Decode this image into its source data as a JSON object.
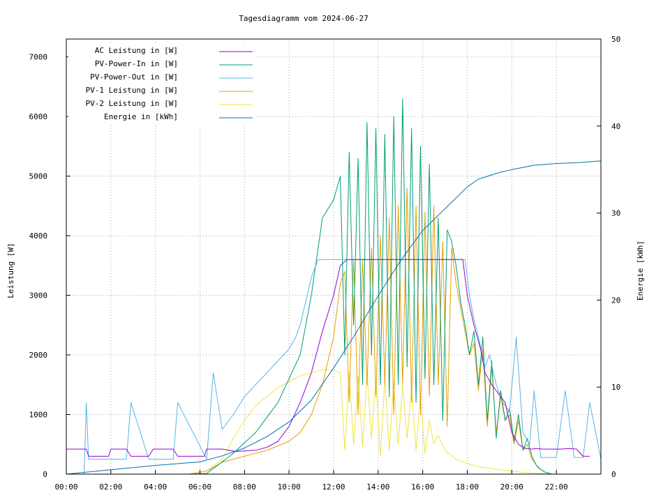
{
  "chart_data": {
    "type": "line",
    "title": "Tagesdiagramm vom 2024-06-27",
    "ylabel": "Leistung [W]",
    "y2label": "Energie [kWh]",
    "xlim": [
      0,
      24
    ],
    "ylim": [
      0,
      7300
    ],
    "y2lim": [
      0,
      50
    ],
    "x_ticks": [
      "00:00",
      "02:00",
      "04:00",
      "06:00",
      "08:00",
      "10:00",
      "12:00",
      "14:00",
      "16:00",
      "18:00",
      "20:00",
      "22:00"
    ],
    "y_ticks": [
      0,
      1000,
      2000,
      3000,
      4000,
      5000,
      6000,
      7000
    ],
    "y2_ticks": [
      0,
      10,
      20,
      30,
      40,
      50
    ],
    "grid": true,
    "legend_position": "top-left",
    "series": [
      {
        "name": "AC Leistung in [W]",
        "color": "#9400d3",
        "axis": "left",
        "x": [
          0,
          0.9,
          1.0,
          1.9,
          2.0,
          2.7,
          2.9,
          3.7,
          3.9,
          4.8,
          5.0,
          6.2,
          6.3,
          7.0,
          7.6,
          8.5,
          9.0,
          9.5,
          10.0,
          10.5,
          11.0,
          11.5,
          12.0,
          12.3,
          12.6,
          13.0,
          13.3,
          13.6,
          14.0,
          14.3,
          14.6,
          15.0,
          15.3,
          15.6,
          16.0,
          16.3,
          16.6,
          17.0,
          17.3,
          17.6,
          17.8,
          18.0,
          18.3,
          18.6,
          18.8,
          19.1,
          19.4,
          19.7,
          20.0,
          20.3,
          20.6,
          20.9,
          21.1,
          21.4,
          21.8,
          22.2,
          22.6,
          22.9,
          23.2,
          23.5
        ],
        "y": [
          420,
          420,
          300,
          300,
          420,
          420,
          300,
          300,
          420,
          420,
          300,
          300,
          420,
          420,
          380,
          400,
          450,
          550,
          800,
          1200,
          1700,
          2400,
          3000,
          3500,
          3600,
          3600,
          3600,
          3600,
          3600,
          3600,
          3600,
          3600,
          3600,
          3600,
          3600,
          3600,
          3600,
          3600,
          3600,
          3600,
          3600,
          3000,
          2500,
          2100,
          1700,
          1500,
          1350,
          1200,
          700,
          500,
          430,
          420,
          430,
          420,
          420,
          420,
          430,
          420,
          300,
          300
        ]
      },
      {
        "name": "PV-Power-In in [W]",
        "color": "#009e73",
        "axis": "left",
        "x": [
          0,
          5.5,
          6.3,
          6.8,
          7.5,
          8.5,
          9.5,
          10.5,
          11.0,
          11.5,
          12.0,
          12.3,
          12.5,
          12.7,
          12.9,
          13.1,
          13.3,
          13.5,
          13.7,
          13.9,
          14.1,
          14.3,
          14.5,
          14.7,
          14.9,
          15.1,
          15.3,
          15.5,
          15.7,
          15.9,
          16.1,
          16.3,
          16.5,
          16.7,
          16.9,
          17.1,
          17.3,
          17.5,
          17.7,
          17.9,
          18.1,
          18.3,
          18.5,
          18.7,
          18.9,
          19.1,
          19.3,
          19.5,
          19.7,
          19.9,
          20.1,
          20.3,
          20.5,
          20.7,
          20.9,
          21.1,
          21.3,
          21.5,
          21.8,
          22.2,
          24
        ],
        "y": [
          0,
          0,
          10,
          150,
          350,
          700,
          1200,
          2000,
          3000,
          4300,
          4600,
          5000,
          2000,
          5400,
          2500,
          5300,
          1500,
          5900,
          2000,
          5800,
          1500,
          5700,
          1300,
          6000,
          1500,
          6300,
          1800,
          5800,
          1200,
          5500,
          1600,
          5200,
          1500,
          4300,
          900,
          4100,
          3900,
          3500,
          2900,
          2500,
          2000,
          2400,
          1500,
          2300,
          900,
          1900,
          600,
          1400,
          900,
          1100,
          550,
          1000,
          400,
          600,
          300,
          150,
          80,
          30,
          0,
          0,
          0
        ]
      },
      {
        "name": "PV-Power-Out in [W]",
        "color": "#56b4e9",
        "axis": "left",
        "x": [
          0,
          0.8,
          0.9,
          1.0,
          2.0,
          2.7,
          2.9,
          3.7,
          3.9,
          4.8,
          5.0,
          6.3,
          6.6,
          7.0,
          7.5,
          8.0,
          8.5,
          9.0,
          9.5,
          10.0,
          10.3,
          10.5,
          11.0,
          11.3,
          11.6,
          12.0,
          12.3,
          12.6,
          12.9,
          13.2,
          13.5,
          13.8,
          14.1,
          14.4,
          14.7,
          15.0,
          15.3,
          15.6,
          15.9,
          16.2,
          16.5,
          16.8,
          17.1,
          17.4,
          17.7,
          17.9,
          18.1,
          18.3,
          18.5,
          18.8,
          19.0,
          19.3,
          19.6,
          19.9,
          20.2,
          20.5,
          20.8,
          21.0,
          21.3,
          21.6,
          22.0,
          22.4,
          22.8,
          23.2,
          23.5,
          24
        ],
        "y": [
          0,
          0,
          1200,
          250,
          250,
          250,
          1200,
          250,
          250,
          250,
          1200,
          250,
          1700,
          750,
          1000,
          1300,
          1500,
          1700,
          1900,
          2100,
          2300,
          2500,
          3300,
          3600,
          3600,
          3600,
          3600,
          3600,
          3600,
          3600,
          3600,
          3600,
          3600,
          3600,
          3600,
          3600,
          3600,
          3600,
          3600,
          3600,
          3600,
          3600,
          3600,
          3600,
          3600,
          3600,
          3000,
          2600,
          2300,
          1800,
          2000,
          1500,
          1200,
          1050,
          2300,
          700,
          500,
          1400,
          280,
          280,
          280,
          1400,
          280,
          280,
          1200,
          250
        ]
      },
      {
        "name": "PV-1 Leistung in [W]",
        "color": "#e69f00",
        "axis": "left",
        "x": [
          0,
          5.5,
          6.3,
          7.0,
          8.0,
          9.0,
          10.0,
          10.5,
          11.0,
          11.5,
          12.0,
          12.3,
          12.5,
          12.7,
          12.9,
          13.1,
          13.3,
          13.5,
          13.7,
          13.9,
          14.1,
          14.3,
          14.5,
          14.7,
          14.9,
          15.1,
          15.3,
          15.5,
          15.7,
          15.9,
          16.1,
          16.3,
          16.5,
          16.7,
          16.9,
          17.1,
          17.3,
          17.5,
          17.7,
          17.9,
          18.1,
          18.3,
          18.5,
          18.7,
          18.9,
          19.1,
          19.3,
          19.5,
          19.7,
          19.9,
          20.1,
          20.3,
          20.5,
          20.7,
          20.9,
          21.2,
          21.5,
          21.8,
          24
        ],
        "y": [
          0,
          0,
          50,
          200,
          300,
          400,
          550,
          700,
          1000,
          1500,
          2300,
          3200,
          3400,
          1200,
          3600,
          1000,
          3600,
          1500,
          3800,
          1300,
          4000,
          1500,
          4300,
          1000,
          4500,
          1500,
          4800,
          1200,
          4500,
          1000,
          4400,
          1300,
          4500,
          1500,
          3900,
          800,
          3800,
          3200,
          2800,
          2400,
          2000,
          2200,
          1400,
          2100,
          800,
          1800,
          700,
          1300,
          900,
          1000,
          500,
          900,
          400,
          500,
          250,
          100,
          30,
          0,
          0
        ]
      },
      {
        "name": "PV-2 Leistung in [W]",
        "color": "#f0e442",
        "axis": "left",
        "x": [
          0,
          5.5,
          6.3,
          7.0,
          7.5,
          8.0,
          8.5,
          9.0,
          9.5,
          10.0,
          10.5,
          11.0,
          11.5,
          12.0,
          12.3,
          12.5,
          12.7,
          12.9,
          13.1,
          13.3,
          13.5,
          13.7,
          13.9,
          14.1,
          14.3,
          14.5,
          14.7,
          14.9,
          15.1,
          15.3,
          15.5,
          15.7,
          15.9,
          16.1,
          16.3,
          16.5,
          16.7,
          17.0,
          17.5,
          18.0,
          18.5,
          19.0,
          19.5,
          20.0,
          20.5,
          21.0,
          21.5,
          22.0,
          24
        ],
        "y": [
          0,
          0,
          50,
          250,
          600,
          900,
          1150,
          1300,
          1450,
          1550,
          1650,
          1700,
          1750,
          1750,
          1700,
          400,
          1700,
          500,
          1650,
          450,
          1700,
          600,
          1600,
          300,
          1600,
          400,
          1550,
          500,
          1500,
          600,
          1450,
          400,
          1300,
          350,
          900,
          500,
          650,
          400,
          250,
          180,
          120,
          100,
          70,
          50,
          30,
          15,
          5,
          0,
          0
        ]
      },
      {
        "name": "Energie in [kWh]",
        "color": "#0072b2",
        "axis": "right",
        "x": [
          0,
          2.0,
          4.0,
          6.0,
          7.0,
          8.0,
          9.0,
          10.0,
          11.0,
          12.0,
          13.0,
          14.0,
          15.0,
          16.0,
          17.0,
          18.0,
          18.5,
          19.0,
          19.5,
          20.0,
          21.0,
          22.0,
          23.0,
          24
        ],
        "y": [
          0,
          0.5,
          1.0,
          1.4,
          2.1,
          3.0,
          4.3,
          6.0,
          8.5,
          12.2,
          16.2,
          20.5,
          24.5,
          28.0,
          30.5,
          33.0,
          33.9,
          34.3,
          34.7,
          35.0,
          35.5,
          35.7,
          35.8,
          36.0
        ]
      }
    ]
  }
}
